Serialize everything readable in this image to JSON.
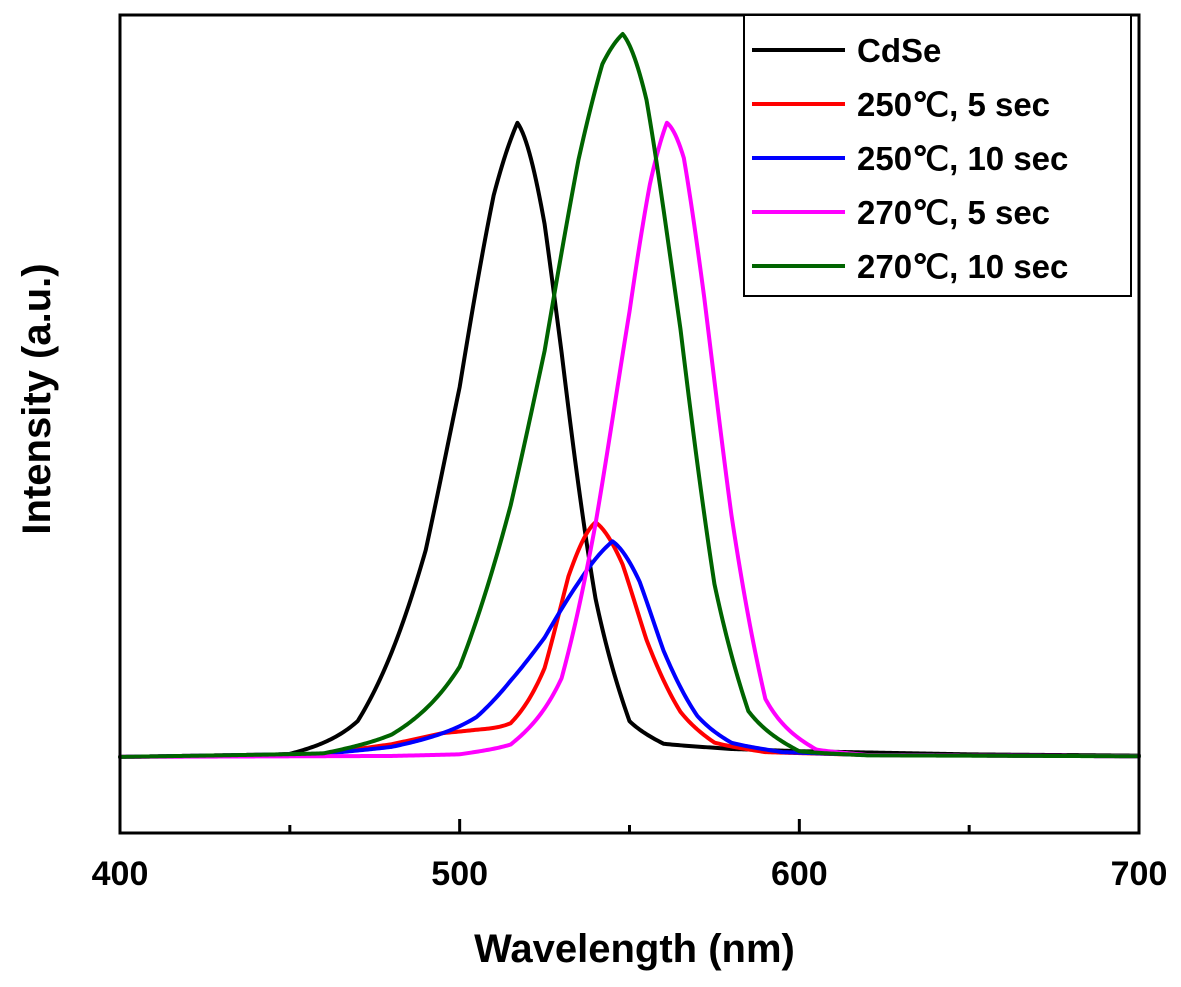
{
  "chart_data": {
    "type": "line",
    "title": "",
    "xlabel": "Wavelength (nm)",
    "ylabel": "Intensity (a.u.)",
    "xlim": [
      400,
      700
    ],
    "ylim": [
      -0.12,
      1.17
    ],
    "x_ticks": [
      400,
      500,
      600,
      700
    ],
    "x_minor_ticks": [
      450,
      550,
      650
    ],
    "y_ticks_labeled": false,
    "grid": false,
    "legend_position": "top-right",
    "series": [
      {
        "name": "CdSe",
        "color": "#000000",
        "peak_nm": 517,
        "peak": 1.0,
        "width_left": 20,
        "width_right": 12,
        "x": [
          400,
          450,
          470,
          490,
          500,
          510,
          517,
          525,
          530,
          540,
          550,
          560,
          580,
          600,
          650,
          700
        ],
        "y": [
          0.0,
          0.006,
          0.05,
          0.25,
          0.47,
          0.83,
          1.0,
          0.88,
          0.72,
          0.34,
          0.09,
          0.04,
          0.025,
          0.018,
          0.008,
          0.004
        ]
      },
      {
        "name": "250℃, 5 sec",
        "color": "#ff0000",
        "peak_nm": 540,
        "peak": 0.37,
        "width_left": 10,
        "width_right": 12,
        "x": [
          400,
          460,
          480,
          495,
          505,
          515,
          525,
          532,
          540,
          548,
          555,
          565,
          575,
          590,
          620,
          700
        ],
        "y": [
          0.0,
          0.01,
          0.04,
          0.075,
          0.085,
          0.09,
          0.16,
          0.3,
          0.37,
          0.31,
          0.2,
          0.1,
          0.04,
          0.015,
          0.006,
          0.002
        ]
      },
      {
        "name": "250℃, 10 sec",
        "color": "#0000ff",
        "peak_nm": 545,
        "peak": 0.34,
        "width_left": 20,
        "width_right": 12,
        "x": [
          400,
          460,
          480,
          495,
          505,
          515,
          525,
          535,
          545,
          553,
          560,
          570,
          580,
          595,
          620,
          700
        ],
        "y": [
          0.0,
          0.01,
          0.03,
          0.06,
          0.08,
          0.13,
          0.17,
          0.25,
          0.34,
          0.28,
          0.18,
          0.09,
          0.04,
          0.015,
          0.006,
          0.002
        ]
      },
      {
        "name": "270℃, 5 sec",
        "color": "#ff00ff",
        "peak_nm": 561,
        "peak": 1.0,
        "width_left": 15,
        "width_right": 13,
        "x": [
          400,
          480,
          500,
          515,
          530,
          540,
          550,
          556,
          561,
          566,
          572,
          580,
          590,
          605,
          620,
          700
        ],
        "y": [
          0.0,
          0.003,
          0.008,
          0.03,
          0.13,
          0.36,
          0.64,
          0.86,
          1.0,
          0.96,
          0.75,
          0.42,
          0.1,
          0.02,
          0.006,
          0.002
        ]
      },
      {
        "name": "270℃, 10 sec",
        "color": "#006400",
        "peak_nm": 548,
        "peak": 1.14,
        "width_left": 24,
        "width_right": 15,
        "x": [
          400,
          460,
          480,
          500,
          515,
          525,
          535,
          542,
          548,
          555,
          565,
          575,
          585,
          600,
          620,
          700
        ],
        "y": [
          0.0,
          0.01,
          0.05,
          0.13,
          0.35,
          0.56,
          0.9,
          1.08,
          1.14,
          1.05,
          0.75,
          0.32,
          0.09,
          0.015,
          0.005,
          0.002
        ]
      }
    ]
  }
}
